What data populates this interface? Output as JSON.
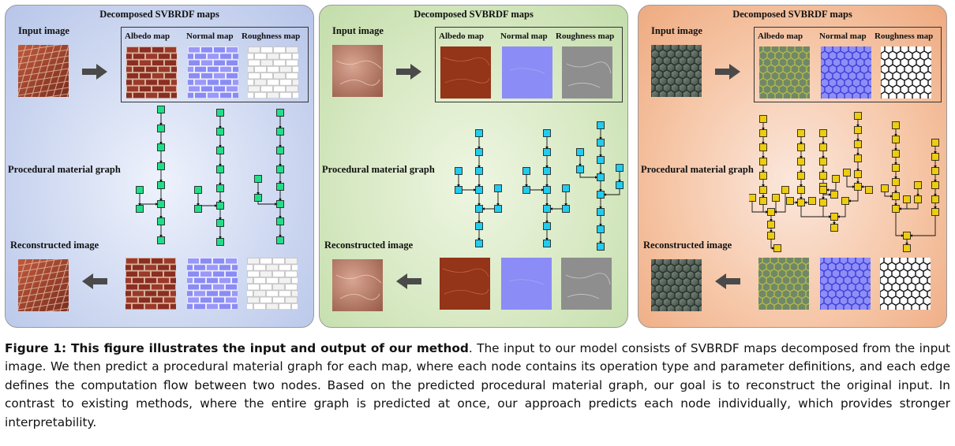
{
  "panels": [
    {
      "title": "Decomposed SVBRDF maps",
      "input_label": "Input image",
      "graph_label": "Procedural material graph",
      "recon_label": "Reconstructed image",
      "maps": [
        "Albedo map",
        "Normal map",
        "Roughness map"
      ],
      "node_color": "#22dd88",
      "background": "#cfd9f1"
    },
    {
      "title": "Decomposed SVBRDF maps",
      "input_label": "Input image",
      "graph_label": "Procedural material graph",
      "recon_label": "Reconstructed image",
      "maps": [
        "Albedo map",
        "Normal map",
        "Roughness map"
      ],
      "node_color": "#22ccee",
      "background": "#d8e9c4"
    },
    {
      "title": "Decomposed SVBRDF maps",
      "input_label": "Input image",
      "graph_label": "Procedural material graph",
      "recon_label": "Reconstructed image",
      "maps": [
        "Albedo map",
        "Normal map",
        "Roughness map"
      ],
      "node_color": "#eecc11",
      "background": "#f6c7a8"
    }
  ],
  "caption": {
    "heading": "Figure 1: This figure illustrates the input and output of our method",
    "body": ". The input to our model consists of SVBRDF maps decomposed from the input image. We then predict a procedural material graph for each map, where each node contains its operation type and parameter definitions, and each edge defines the computation flow between two nodes. Based on the predicted procedural material graph, our goal is to reconstruct the original input. In contrast to existing methods, where the entire graph is predicted at once, our approach predicts each node individually, which provides stronger interpretability."
  }
}
